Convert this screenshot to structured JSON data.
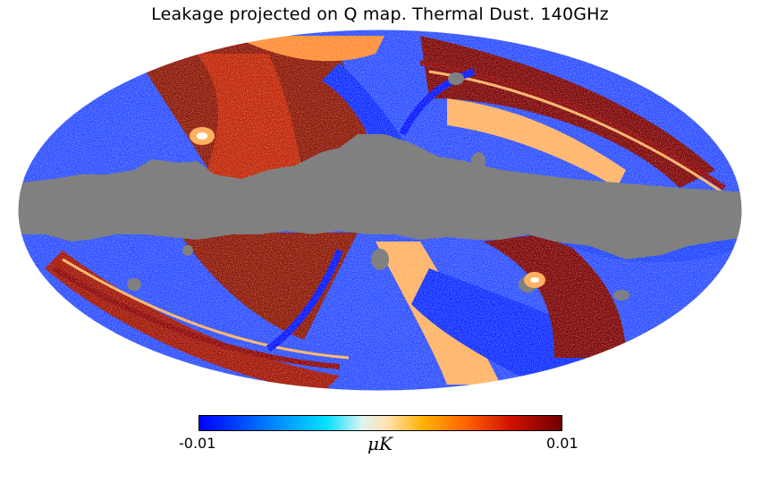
{
  "figure": {
    "title": "Leakage projected on Q map. Thermal Dust. 140GHz"
  },
  "map": {
    "projection": "mollweide",
    "masked_color": "#808080",
    "palette": [
      "#0000ff",
      "#00e0ff",
      "#ffe0b0",
      "#ffb000",
      "#ff6000",
      "#700000"
    ]
  },
  "colorbar": {
    "min_label": "-0.01",
    "max_label": "0.01",
    "unit": "μK"
  }
}
